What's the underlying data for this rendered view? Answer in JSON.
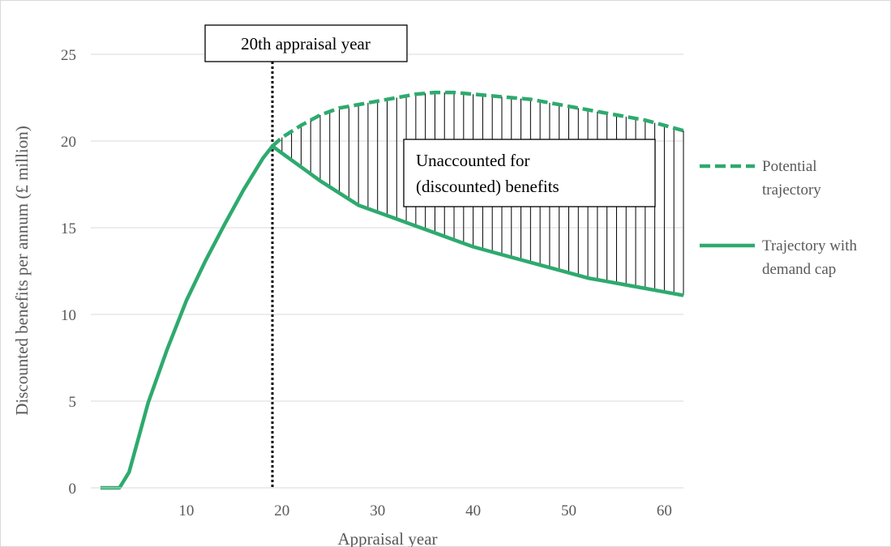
{
  "chart_data": {
    "type": "line",
    "title": "",
    "xlabel": "Appraisal year",
    "ylabel": "Discounted benefits per annum (£ million)",
    "xlim": [
      0,
      62
    ],
    "ylim": [
      0,
      25
    ],
    "x_ticks": [
      10,
      20,
      30,
      40,
      50,
      60
    ],
    "y_ticks": [
      0,
      5,
      10,
      15,
      20,
      25
    ],
    "grid": "horizontal",
    "legend_position": "right",
    "colors": {
      "series": "#2eaa6e",
      "grid": "#d9d9d9",
      "text": "#595959",
      "hatch": "#000000"
    },
    "series": [
      {
        "name": "Potential trajectory",
        "style": "dashed",
        "x": [
          19,
          20,
          22,
          24,
          26,
          28,
          30,
          32,
          34,
          36,
          38,
          40,
          42,
          44,
          46,
          48,
          50,
          52,
          54,
          56,
          58,
          60,
          62
        ],
        "y": [
          19.7,
          20.2,
          20.9,
          21.5,
          21.9,
          22.1,
          22.3,
          22.5,
          22.7,
          22.8,
          22.8,
          22.7,
          22.6,
          22.5,
          22.4,
          22.2,
          22.0,
          21.8,
          21.6,
          21.4,
          21.2,
          20.9,
          20.6
        ]
      },
      {
        "name": "Trajectory with demand cap",
        "style": "solid",
        "x": [
          1,
          2,
          3,
          4,
          5,
          6,
          8,
          10,
          12,
          14,
          16,
          18,
          19,
          20,
          22,
          24,
          26,
          28,
          30,
          32,
          34,
          36,
          38,
          40,
          42,
          44,
          46,
          48,
          50,
          52,
          54,
          56,
          58,
          60,
          62
        ],
        "y": [
          0,
          0,
          0,
          0.9,
          2.9,
          4.9,
          8.0,
          10.8,
          13.1,
          15.2,
          17.2,
          19.0,
          19.7,
          19.3,
          18.5,
          17.7,
          17.0,
          16.3,
          15.9,
          15.5,
          15.1,
          14.7,
          14.3,
          13.9,
          13.6,
          13.3,
          13.0,
          12.7,
          12.4,
          12.1,
          11.9,
          11.7,
          11.5,
          11.3,
          11.1
        ]
      }
    ],
    "shaded_region": {
      "between": [
        "Potential trajectory",
        "Trajectory with demand cap"
      ],
      "x_from": 19,
      "x_to": 62,
      "pattern": "vertical-hatch"
    },
    "vertical_marker": {
      "x": 19,
      "style": "dotted"
    },
    "annotations": {
      "marker_label": "20th appraisal year",
      "region_label": [
        "Unaccounted for",
        "(discounted) benefits"
      ]
    }
  }
}
